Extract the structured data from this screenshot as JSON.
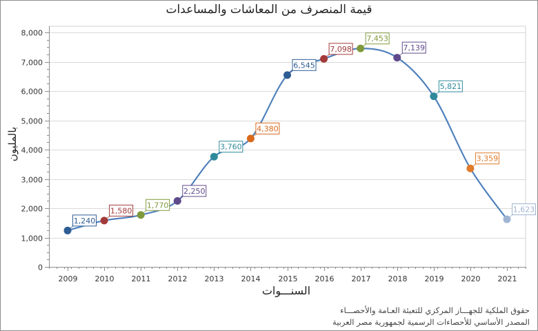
{
  "chart_title": "قيمة المنصرف من المعاشات والمساعدات",
  "y_axis_title": "بالمليون",
  "x_axis_title": "السنـــوات",
  "credits": {
    "line1": "حقوق الملكية للجهـــاز المركزي للتعبئة العـامة والأحصـــاء",
    "line2": "المصدر الأساسي للأحصاءات الرسمية لجمهورية مصر العربية"
  },
  "y_ticks": [
    "0",
    "1,000",
    "2,000",
    "3,000",
    "4,000",
    "5,000",
    "6,000",
    "7,000",
    "8,000"
  ],
  "x_ticks": [
    "2009",
    "2010",
    "2011",
    "2012",
    "2013",
    "2014",
    "2015",
    "2016",
    "2017",
    "2018",
    "2019",
    "2020",
    "2021"
  ],
  "line_color": "#4f81bd",
  "points": [
    {
      "year": "2009",
      "value": 1240,
      "label": "1,240",
      "color": "#2e5d94"
    },
    {
      "year": "2010",
      "value": 1580,
      "label": "1,580",
      "color": "#a33a3a"
    },
    {
      "year": "2011",
      "value": 1770,
      "label": "1,770",
      "color": "#7f9a3c"
    },
    {
      "year": "2012",
      "value": 2250,
      "label": "2,250",
      "color": "#5f4a8b"
    },
    {
      "year": "2013",
      "value": 3760,
      "label": "3,760",
      "color": "#2f8a9c"
    },
    {
      "year": "2014",
      "value": 4380,
      "label": "4,380",
      "color": "#d9691c"
    },
    {
      "year": "2015",
      "value": 6545,
      "label": "6,545",
      "color": "#2e5d94"
    },
    {
      "year": "2016",
      "value": 7098,
      "label": "7,098",
      "color": "#a33a3a"
    },
    {
      "year": "2017",
      "value": 7453,
      "label": "7,453",
      "color": "#7f9a3c"
    },
    {
      "year": "2018",
      "value": 7139,
      "label": "7,139",
      "color": "#5f4a8b"
    },
    {
      "year": "2019",
      "value": 5821,
      "label": "5,821",
      "color": "#2f8a9c"
    },
    {
      "year": "2020",
      "value": 3359,
      "label": "3,359",
      "color": "#e07b2a"
    },
    {
      "year": "2021",
      "value": 1623,
      "label": "1,623",
      "color": "#9fb4d2"
    }
  ],
  "chart_data": {
    "type": "line",
    "title": "قيمة المنصرف من المعاشات والمساعدات",
    "xlabel": "السنـــوات",
    "ylabel": "بالمليون",
    "categories": [
      "2009",
      "2010",
      "2011",
      "2012",
      "2013",
      "2014",
      "2015",
      "2016",
      "2017",
      "2018",
      "2019",
      "2020",
      "2021"
    ],
    "series": [
      {
        "name": "قيمة المنصرف من المعاشات والمساعدات",
        "values": [
          1240,
          1580,
          1770,
          2250,
          3760,
          4380,
          6545,
          7098,
          7453,
          7139,
          5821,
          3359,
          1623
        ]
      }
    ],
    "ylim": [
      0,
      8000
    ],
    "y_tick_step": 1000,
    "grid": true,
    "legend": "none",
    "data_labels": true,
    "smooth": true
  }
}
